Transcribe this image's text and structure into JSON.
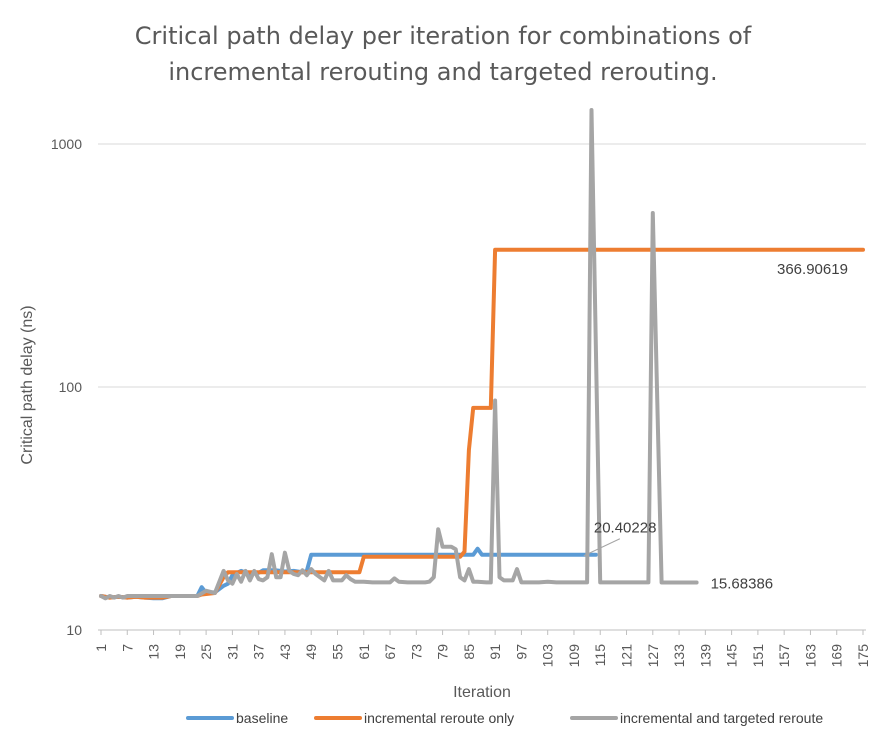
{
  "chart_data": {
    "type": "line",
    "title_lines": [
      "Critical path delay per iteration for combinations of",
      "incremental rerouting and targeted rerouting."
    ],
    "xlabel": "Iteration",
    "ylabel": "Critical path delay (ns)",
    "y_scale": "log",
    "ylim": [
      10,
      1500
    ],
    "y_ticks": [
      10,
      100,
      1000
    ],
    "y_tick_labels": [
      "10",
      "100",
      "1000"
    ],
    "x_range": [
      1,
      175
    ],
    "x_ticks": [
      1,
      7,
      13,
      19,
      25,
      31,
      37,
      43,
      49,
      55,
      61,
      67,
      73,
      79,
      85,
      91,
      97,
      103,
      109,
      115,
      121,
      127,
      133,
      139,
      145,
      151,
      157,
      163,
      169,
      175
    ],
    "x_tick_labels": [
      "1",
      "7",
      "13",
      "19",
      "25",
      "31",
      "37",
      "43",
      "49",
      "55",
      "61",
      "67",
      "73",
      "79",
      "85",
      "91",
      "97",
      "103",
      "109",
      "115",
      "121",
      "127",
      "133",
      "139",
      "145",
      "151",
      "157",
      "163",
      "169",
      "175"
    ],
    "grid": "horizontal",
    "legend_position": "bottom",
    "series": [
      {
        "name": "baseline",
        "color": "#5B9BD5",
        "points": [
          [
            1,
            13.8
          ],
          [
            3,
            13.6
          ],
          [
            5,
            13.7
          ],
          [
            7,
            13.6
          ],
          [
            9,
            13.7
          ],
          [
            11,
            13.6
          ],
          [
            13,
            13.5
          ],
          [
            15,
            13.5
          ],
          [
            17,
            13.8
          ],
          [
            19,
            13.8
          ],
          [
            23,
            13.8
          ],
          [
            24,
            15
          ],
          [
            25,
            14.2
          ],
          [
            27,
            14.3
          ],
          [
            29,
            15.2
          ],
          [
            30,
            15.5
          ],
          [
            31,
            16.8
          ],
          [
            33,
            17.5
          ],
          [
            35,
            17
          ],
          [
            37,
            17.2
          ],
          [
            38,
            17.6
          ],
          [
            41,
            17.6
          ],
          [
            43,
            17.4
          ],
          [
            45,
            17.5
          ],
          [
            47,
            17.3
          ],
          [
            48,
            17.5
          ],
          [
            49,
            20.4
          ],
          [
            86,
            20.4
          ],
          [
            87,
            21.6
          ],
          [
            88,
            20.4
          ],
          [
            114,
            20.4
          ]
        ],
        "end_label": "20.40228",
        "end_label_x": 114,
        "end_label_y": 20.40228
      },
      {
        "name": "incremental reroute only",
        "color": "#ED7D31",
        "points": [
          [
            1,
            13.8
          ],
          [
            3,
            13.6
          ],
          [
            5,
            13.7
          ],
          [
            7,
            13.6
          ],
          [
            9,
            13.7
          ],
          [
            11,
            13.6
          ],
          [
            13,
            13.6
          ],
          [
            15,
            13.6
          ],
          [
            17,
            13.8
          ],
          [
            19,
            13.8
          ],
          [
            23,
            13.8
          ],
          [
            24,
            14
          ],
          [
            27,
            14.2
          ],
          [
            29,
            16.5
          ],
          [
            30,
            17.3
          ],
          [
            60,
            17.3
          ],
          [
            61,
            20
          ],
          [
            83,
            20
          ],
          [
            84,
            21
          ],
          [
            85,
            55
          ],
          [
            86,
            82
          ],
          [
            90,
            82
          ],
          [
            91,
            366.9
          ],
          [
            175,
            366.90619
          ]
        ],
        "end_label": "366.90619",
        "end_label_x": 175,
        "end_label_y": 366.90619
      },
      {
        "name": "incremental and targeted reroute",
        "color": "#A5A5A5",
        "points": [
          [
            1,
            13.8
          ],
          [
            2,
            13.5
          ],
          [
            3,
            13.8
          ],
          [
            4,
            13.6
          ],
          [
            5,
            13.8
          ],
          [
            6,
            13.6
          ],
          [
            7,
            13.8
          ],
          [
            9,
            13.8
          ],
          [
            11,
            13.8
          ],
          [
            13,
            13.8
          ],
          [
            15,
            13.8
          ],
          [
            17,
            13.8
          ],
          [
            19,
            13.8
          ],
          [
            21,
            13.8
          ],
          [
            23,
            13.8
          ],
          [
            25,
            14.5
          ],
          [
            27,
            14.2
          ],
          [
            29,
            17.5
          ],
          [
            30,
            16
          ],
          [
            31,
            15.5
          ],
          [
            32,
            17
          ],
          [
            33,
            15.8
          ],
          [
            34,
            17.5
          ],
          [
            35,
            16
          ],
          [
            36,
            17.5
          ],
          [
            37,
            16.2
          ],
          [
            38,
            16
          ],
          [
            39,
            16.5
          ],
          [
            40,
            20.5
          ],
          [
            41,
            16.5
          ],
          [
            42,
            16.5
          ],
          [
            43,
            20.8
          ],
          [
            44,
            17.5
          ],
          [
            45,
            17
          ],
          [
            46,
            16.8
          ],
          [
            47,
            17.6
          ],
          [
            48,
            16.8
          ],
          [
            49,
            17.8
          ],
          [
            50,
            17
          ],
          [
            51,
            16.5
          ],
          [
            52,
            16
          ],
          [
            53,
            17.5
          ],
          [
            54,
            16
          ],
          [
            55,
            16
          ],
          [
            56,
            16
          ],
          [
            57,
            16.8
          ],
          [
            58,
            16.2
          ],
          [
            59,
            15.8
          ],
          [
            61,
            15.8
          ],
          [
            63,
            15.7
          ],
          [
            65,
            15.7
          ],
          [
            67,
            15.7
          ],
          [
            68,
            16.3
          ],
          [
            69,
            15.8
          ],
          [
            71,
            15.7
          ],
          [
            73,
            15.7
          ],
          [
            75,
            15.7
          ],
          [
            76,
            15.8
          ],
          [
            77,
            16.5
          ],
          [
            78,
            26
          ],
          [
            79,
            22
          ],
          [
            80,
            22
          ],
          [
            81,
            22
          ],
          [
            82,
            21.5
          ],
          [
            83,
            16.5
          ],
          [
            84,
            16
          ],
          [
            85,
            17.8
          ],
          [
            86,
            15.8
          ],
          [
            87,
            15.8
          ],
          [
            89,
            15.7
          ],
          [
            90,
            15.7
          ],
          [
            91,
            88
          ],
          [
            92,
            16.5
          ],
          [
            93,
            16
          ],
          [
            94,
            16
          ],
          [
            95,
            16
          ],
          [
            96,
            17.8
          ],
          [
            97,
            15.7
          ],
          [
            99,
            15.7
          ],
          [
            101,
            15.7
          ],
          [
            103,
            15.8
          ],
          [
            105,
            15.7
          ],
          [
            107,
            15.7
          ],
          [
            109,
            15.7
          ],
          [
            111,
            15.7
          ],
          [
            112,
            15.7
          ],
          [
            113,
            1380
          ],
          [
            115,
            15.7
          ],
          [
            117,
            15.7
          ],
          [
            119,
            15.7
          ],
          [
            121,
            15.7
          ],
          [
            123,
            15.7
          ],
          [
            125,
            15.7
          ],
          [
            126,
            15.7
          ],
          [
            127,
            520
          ],
          [
            129,
            15.68
          ],
          [
            131,
            15.68
          ],
          [
            133,
            15.68
          ],
          [
            135,
            15.68
          ],
          [
            137,
            15.68386
          ]
        ],
        "end_label": "15.68386",
        "end_label_x": 137,
        "end_label_y": 15.68386
      }
    ]
  }
}
